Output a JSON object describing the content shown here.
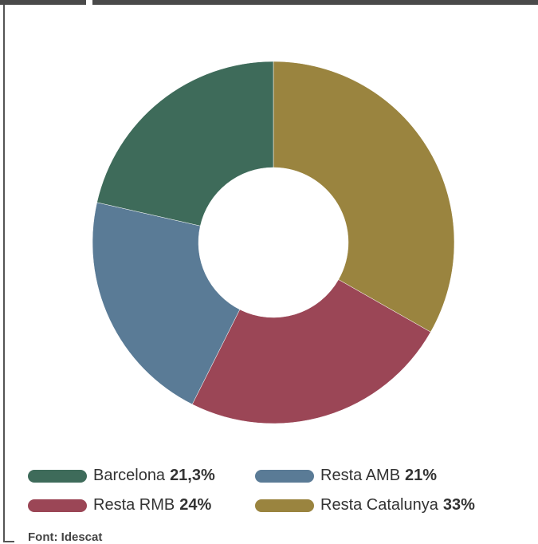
{
  "chart_data": {
    "type": "donut",
    "categories": [
      "Barcelona",
      "Resta AMB",
      "Resta RMB",
      "Resta Catalunya"
    ],
    "values": [
      21.3,
      21,
      24,
      33
    ],
    "value_labels": [
      "21,3%",
      "21%",
      "24%",
      "33%"
    ],
    "colors": [
      "#3e6b5a",
      "#5a7b96",
      "#9b4656",
      "#9a843f"
    ],
    "source": "Font: Idescat"
  }
}
